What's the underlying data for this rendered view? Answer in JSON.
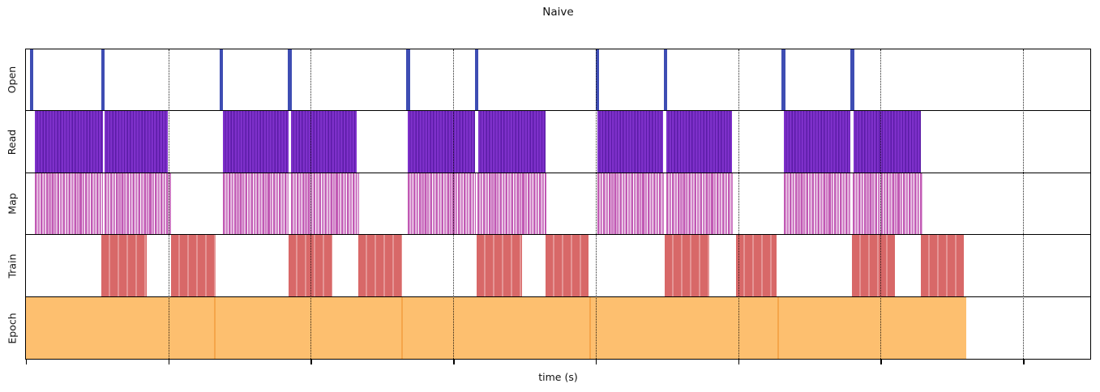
{
  "chart_data": {
    "type": "timeline",
    "title": "Naive",
    "xlabel": "time (s)",
    "x_axis": {
      "tick_labels_visible": false,
      "gridlines_pct": [
        13.38,
        26.77,
        40.15,
        53.54,
        66.92,
        80.3,
        93.69
      ],
      "ticks_pct": [
        0,
        13.38,
        26.77,
        40.15,
        53.54,
        66.92,
        80.3,
        93.69
      ]
    },
    "colors": {
      "open": "#3e4db3",
      "read": "#7b2fc6",
      "map": "#c65bb8",
      "train": "#d96a6a",
      "epoch": "#fdbf6f",
      "epoch_separator": "#f5a54a",
      "grid": "#000000"
    },
    "rows": [
      {
        "label": "Open",
        "kind": "events",
        "color": "#3e4db3",
        "events_pct": [
          0.53,
          7.22,
          18.37,
          24.79,
          35.89,
          42.36,
          53.69,
          60.08,
          71.18,
          77.64
        ]
      },
      {
        "label": "Read",
        "kind": "blocks",
        "pattern": "read",
        "color": "#7b2fc6",
        "segments_pct": [
          [
            0.84,
            7.22
          ],
          [
            7.38,
            13.31
          ],
          [
            18.48,
            24.64
          ],
          [
            24.87,
            31.1
          ],
          [
            35.89,
            42.21
          ],
          [
            42.51,
            48.82
          ],
          [
            53.69,
            59.85
          ],
          [
            60.15,
            66.31
          ],
          [
            71.18,
            77.49
          ],
          [
            77.79,
            84.11
          ]
        ]
      },
      {
        "label": "Map",
        "kind": "blocks",
        "pattern": "map",
        "color": "#c65bb8",
        "segments_pct": [
          [
            0.84,
            7.22
          ],
          [
            7.38,
            13.69
          ],
          [
            18.48,
            24.71
          ],
          [
            24.87,
            31.33
          ],
          [
            35.89,
            42.28
          ],
          [
            42.43,
            48.9
          ],
          [
            53.69,
            60.0
          ],
          [
            60.15,
            66.46
          ],
          [
            71.18,
            77.57
          ],
          [
            77.72,
            84.26
          ]
        ]
      },
      {
        "label": "Train",
        "kind": "blocks",
        "pattern": "train",
        "color": "#d96a6a",
        "segments_pct": [
          [
            7.07,
            11.33
          ],
          [
            13.61,
            17.79
          ],
          [
            24.71,
            28.82
          ],
          [
            31.25,
            35.36
          ],
          [
            42.36,
            46.62
          ],
          [
            48.82,
            52.85
          ],
          [
            60.0,
            64.18
          ],
          [
            66.69,
            70.49
          ],
          [
            77.64,
            81.67
          ],
          [
            84.11,
            88.14
          ]
        ]
      },
      {
        "label": "Epoch",
        "kind": "blocks",
        "pattern": "epoch",
        "color": "#fdbf6f",
        "segments_pct": [
          [
            0,
            17.64
          ],
          [
            17.64,
            35.29
          ],
          [
            35.29,
            52.93
          ],
          [
            52.93,
            70.57
          ],
          [
            70.57,
            88.21
          ]
        ]
      }
    ]
  }
}
